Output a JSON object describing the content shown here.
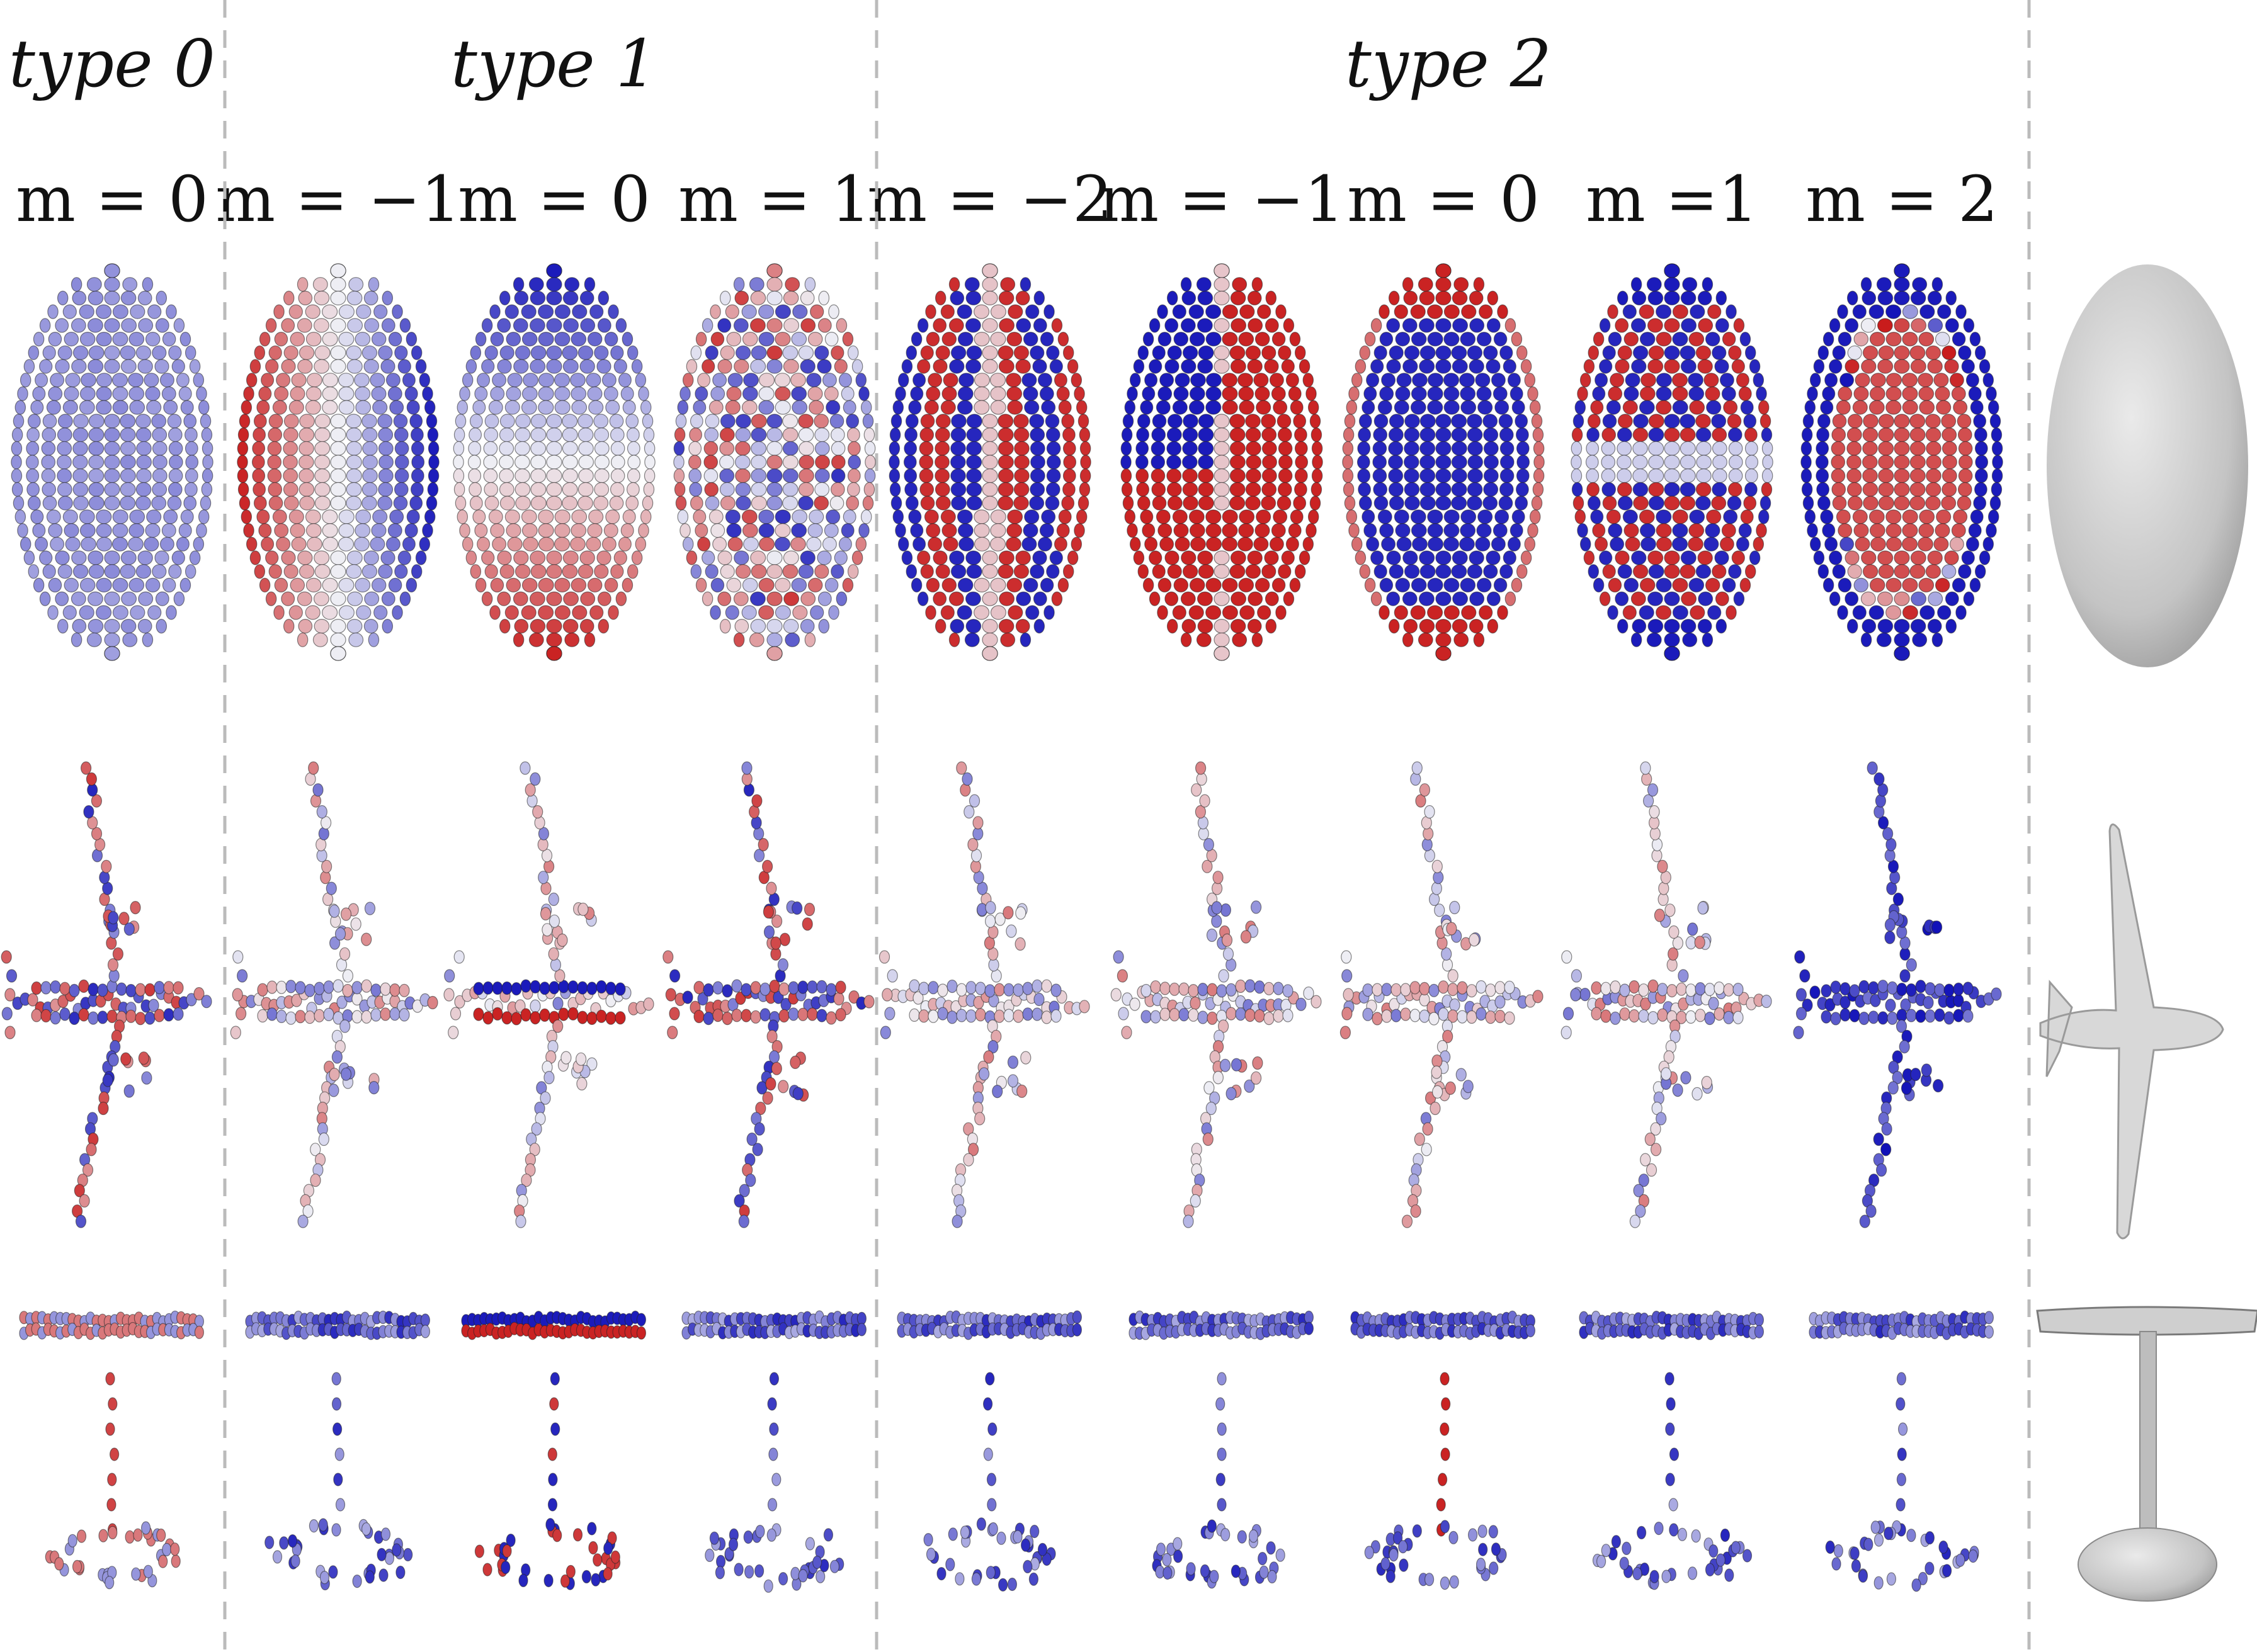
{
  "types": [
    {
      "label": "type 0"
    },
    {
      "label": "type 1"
    },
    {
      "label": "type 2"
    }
  ],
  "columns": [
    {
      "type": 0,
      "m_label": "m = 0",
      "sphere": "uniform-light",
      "plane": "mixed",
      "table": "red"
    },
    {
      "type": 1,
      "m_label": "m = −1",
      "sphere": "lr-red-blue",
      "plane": "light",
      "table": "blue"
    },
    {
      "type": 1,
      "m_label": "m = 0",
      "sphere": "tb-blue-red",
      "plane": "stripe",
      "table": "stripe"
    },
    {
      "type": 1,
      "m_label": "m = 1",
      "sphere": "mixed",
      "plane": "mixed",
      "table": "blue"
    },
    {
      "type": 2,
      "m_label": "m = −2",
      "sphere": "quad-banded",
      "plane": "light",
      "table": "blue"
    },
    {
      "type": 2,
      "m_label": "m = −1",
      "sphere": "quad-diag",
      "plane": "light",
      "table": "blue"
    },
    {
      "type": 2,
      "m_label": "m = 0",
      "sphere": "caps-red",
      "plane": "light",
      "table": "red-stem"
    },
    {
      "type": 2,
      "m_label": "m =1",
      "sphere": "caps-checker",
      "plane": "light",
      "table": "blue"
    },
    {
      "type": 2,
      "m_label": "m = 2",
      "sphere": "ring-blue",
      "plane": "blue",
      "table": "blue"
    }
  ],
  "reference_shapes": [
    "ellipsoid",
    "airplane",
    "table"
  ],
  "colors": {
    "blue": "#1010b8",
    "light_blue": "#9aa6e6",
    "white": "#eeeef4",
    "light_red": "#ee9a9a",
    "red": "#c81818",
    "divider": "#bbbbbb",
    "mesh": "#c8c8c8"
  }
}
